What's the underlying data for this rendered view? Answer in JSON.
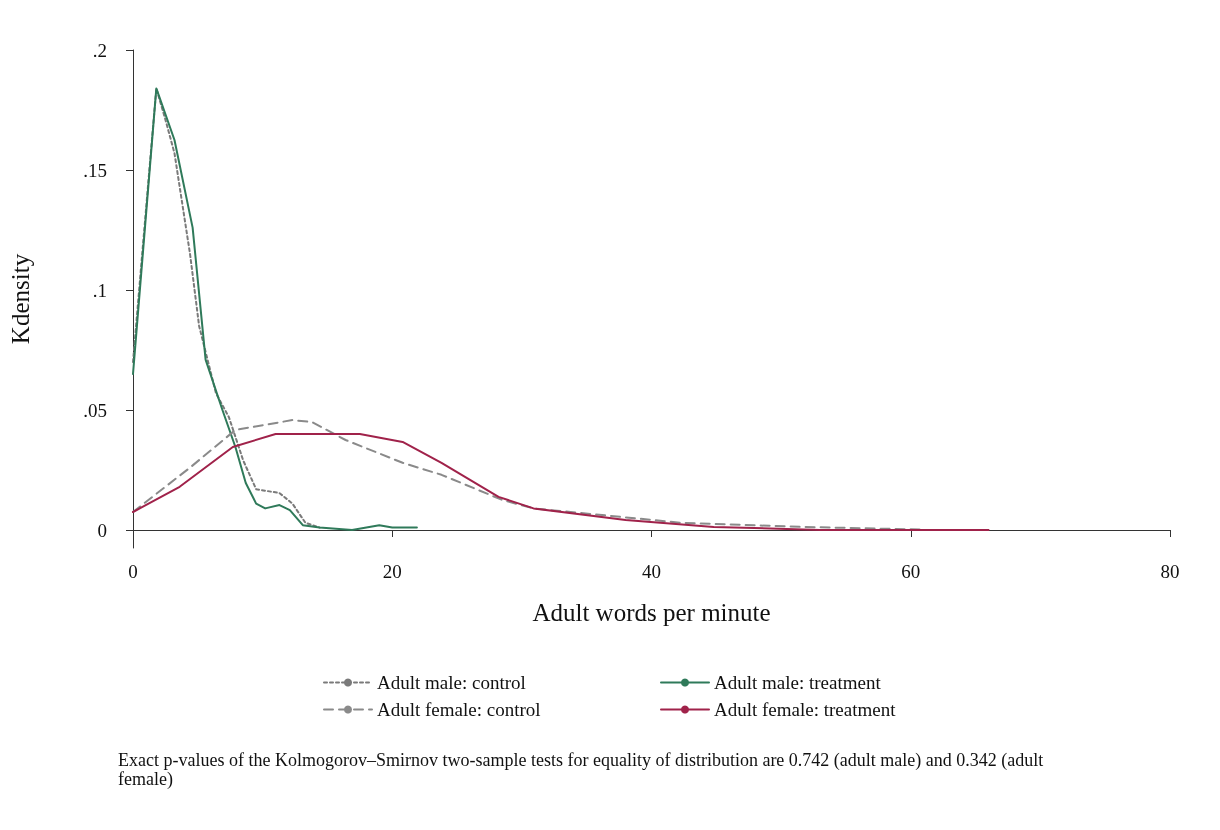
{
  "chart_data": {
    "type": "line",
    "xlabel": "Adult words per minute",
    "ylabel": "Kdensity",
    "xlim": [
      0,
      80
    ],
    "xticks": [
      0,
      20,
      40,
      60,
      80
    ],
    "ylim": [
      -0.0075,
      0.2
    ],
    "yticks": [
      {
        "value": 0,
        "label": "0"
      },
      {
        "value": 0.05,
        "label": ".05"
      },
      {
        "value": 0.1,
        "label": ".1"
      },
      {
        "value": 0.15,
        "label": ".15"
      },
      {
        "value": 0.2,
        "label": ".2"
      }
    ],
    "grid": false,
    "legend": "bottom",
    "marker": "none",
    "annotations": [
      "Exact p-values of the Kolmogorov–Smirnov two-sample tests for equality of distribution are 0.742 (adult male) and 0.342 (adult female)"
    ],
    "series": [
      {
        "name": "Adult male: control",
        "color": "#7a7a7a",
        "line_style": "dotted",
        "x": [
          0,
          1.8,
          2.5,
          3.2,
          4.4,
          5.1,
          6.4,
          7.4,
          8.5,
          9.5,
          11.3,
          12.3,
          13.3,
          14.4
        ],
        "values": [
          0.07,
          0.184,
          0.171,
          0.157,
          0.115,
          0.085,
          0.057,
          0.047,
          0.029,
          0.017,
          0.0154,
          0.011,
          0.003,
          0.001
        ]
      },
      {
        "name": "Adult male: treatment",
        "color": "#2f7a5a",
        "line_style": "solid",
        "x": [
          0,
          1.8,
          3.2,
          4.6,
          5.6,
          6.9,
          7.9,
          8.7,
          9.5,
          10.2,
          11.3,
          12.1,
          13.1,
          14.4,
          16.9,
          19,
          20,
          21.9
        ],
        "values": [
          0.065,
          0.184,
          0.1625,
          0.126,
          0.071,
          0.05,
          0.0346,
          0.0196,
          0.011,
          0.009,
          0.0104,
          0.0083,
          0.002,
          0.001,
          0,
          0.002,
          0.001,
          0.001
        ]
      },
      {
        "name": "Adult female: control",
        "color": "#8a8a8a",
        "line_style": "dashed",
        "x": [
          0,
          4.4,
          7.9,
          12.3,
          13.8,
          16.4,
          20.8,
          23.8,
          28.5,
          30.9,
          42.3,
          51.5,
          60.8
        ],
        "values": [
          0.0075,
          0.026,
          0.0417,
          0.0458,
          0.045,
          0.0375,
          0.028,
          0.023,
          0.0125,
          0.009,
          0.003,
          0.0013,
          0.0002
        ]
      },
      {
        "name": "Adult female: treatment",
        "color": "#a0224a",
        "line_style": "solid",
        "x": [
          0,
          3.6,
          7.7,
          11,
          17.5,
          20.8,
          23.8,
          28.2,
          30.9,
          38,
          44.8,
          53,
          66
        ],
        "values": [
          0.0075,
          0.018,
          0.0346,
          0.04,
          0.04,
          0.0367,
          0.028,
          0.0138,
          0.009,
          0.0042,
          0.0013,
          0,
          0
        ]
      }
    ]
  }
}
